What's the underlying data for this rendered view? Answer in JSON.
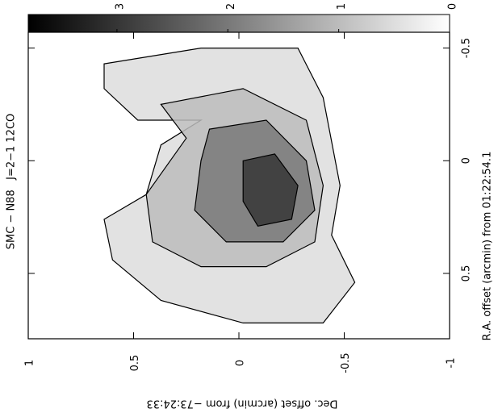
{
  "chart_data": {
    "type": "contour",
    "title": "SMC − N88   J=2−1 12CO",
    "xlabel": "Dec. offset (arcmin) from −73:24:33",
    "ylabel": "R.A. offset (arcmin) from 01:22:54.1",
    "xlim": [
      1,
      -1
    ],
    "xticks": [
      1,
      0.5,
      0,
      -0.5,
      -1
    ],
    "ylim": [
      -0.57,
      0.79
    ],
    "yticks": [
      -0.5,
      0,
      0.5
    ],
    "colorbar": {
      "lim": [
        3.8,
        0
      ],
      "ticks": [
        3,
        2,
        1,
        0
      ]
    },
    "contours": [
      {
        "level": 0.5,
        "x": [
          0.64,
          0.18,
          -0.28,
          -0.4,
          -0.48,
          -0.44,
          -0.55,
          -0.4,
          -0.02,
          0.37,
          0.6,
          0.64,
          0.44,
          0.37,
          0.18,
          0.48,
          0.64
        ],
        "y": [
          -0.43,
          -0.5,
          -0.5,
          -0.28,
          0.11,
          0.33,
          0.54,
          0.72,
          0.72,
          0.62,
          0.44,
          0.26,
          0.15,
          -0.07,
          -0.18,
          -0.18,
          -0.32
        ]
      },
      {
        "level": 1,
        "x": [
          0.37,
          -0.02,
          -0.32,
          -0.4,
          -0.36,
          -0.13,
          0.18,
          0.41,
          0.44,
          0.25
        ],
        "y": [
          -0.25,
          -0.32,
          -0.18,
          0.11,
          0.36,
          0.47,
          0.47,
          0.36,
          0.15,
          -0.1
        ]
      },
      {
        "level": 2,
        "x": [
          0.14,
          -0.13,
          -0.32,
          -0.36,
          -0.21,
          0.06,
          0.21,
          0.18
        ],
        "y": [
          -0.14,
          -0.18,
          0.0,
          0.22,
          0.36,
          0.36,
          0.22,
          0.0
        ]
      },
      {
        "level": 3,
        "x": [
          -0.02,
          -0.17,
          -0.28,
          -0.25,
          -0.09,
          -0.02
        ],
        "y": [
          0.0,
          -0.03,
          0.11,
          0.26,
          0.29,
          0.18
        ]
      }
    ]
  }
}
